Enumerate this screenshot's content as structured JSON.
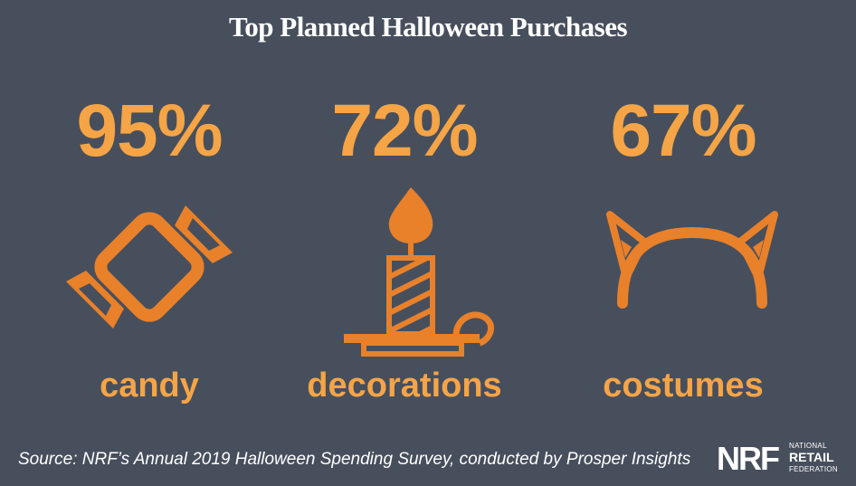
{
  "title": "Top Planned Halloween Purchases",
  "chart_data": {
    "type": "table",
    "title": "Top Planned Halloween Purchases",
    "categories": [
      "candy",
      "decorations",
      "costumes"
    ],
    "values": [
      95,
      72,
      67
    ],
    "value_labels": [
      "95%",
      "72%",
      "67%"
    ],
    "unit": "%"
  },
  "items": [
    {
      "value": "95%",
      "label": "candy",
      "icon": "candy-icon"
    },
    {
      "value": "72%",
      "label": "decorations",
      "icon": "candle-icon"
    },
    {
      "value": "67%",
      "label": "costumes",
      "icon": "cat-ears-headband-icon"
    }
  ],
  "source": "Source: NRF’s Annual 2019 Halloween Spending Survey, conducted by Prosper Insights",
  "logo": {
    "mark": "NRF",
    "line1": "NATIONAL",
    "line2": "RETAIL",
    "line3": "FEDERATION"
  },
  "colors": {
    "background": "#474f5d",
    "accent": "#f5a446",
    "icon": "#e8812a",
    "text": "#ffffff"
  }
}
